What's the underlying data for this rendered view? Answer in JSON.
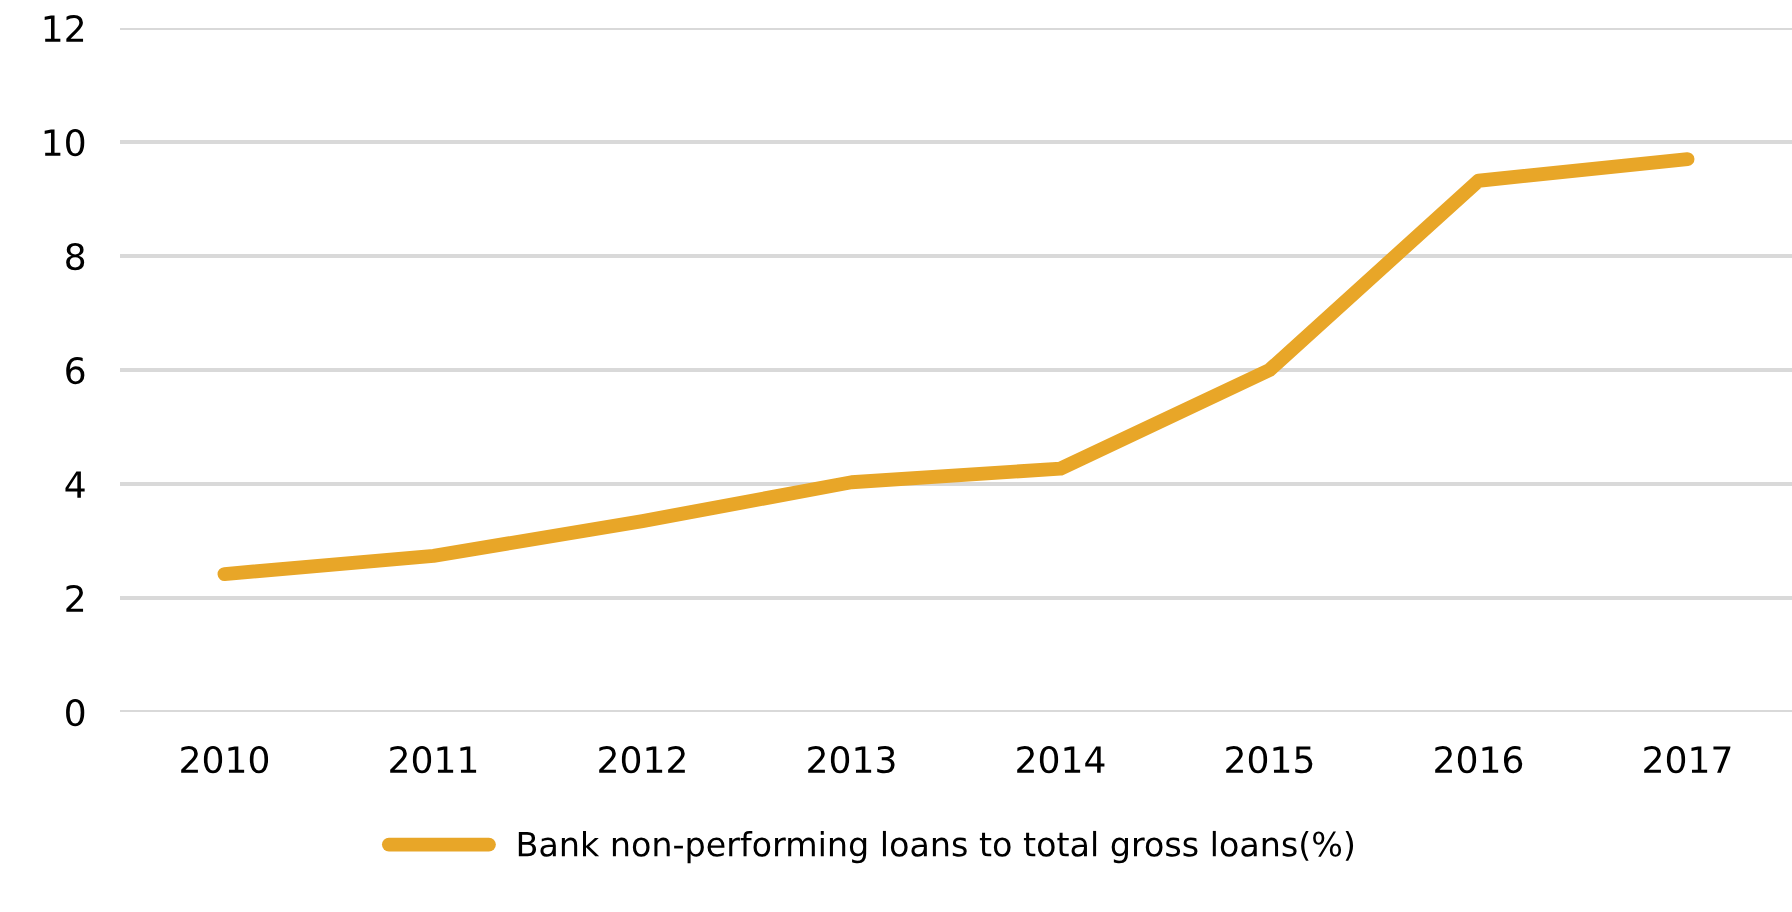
{
  "chart_data": {
    "type": "line",
    "categories": [
      "2010",
      "2011",
      "2012",
      "2013",
      "2014",
      "2015",
      "2016",
      "2017"
    ],
    "series": [
      {
        "name": "Bank non-performing loans to total gross loans(%)",
        "color": "#e8a628",
        "values": [
          2.42,
          2.74,
          3.35,
          4.03,
          4.27,
          6.0,
          9.32,
          9.7
        ]
      }
    ],
    "ylim": [
      0,
      12
    ],
    "yticks": [
      0,
      2,
      4,
      6,
      8,
      10,
      12
    ],
    "grid": "y",
    "legend": "bottom",
    "marker": "none",
    "line_style": "solid"
  }
}
